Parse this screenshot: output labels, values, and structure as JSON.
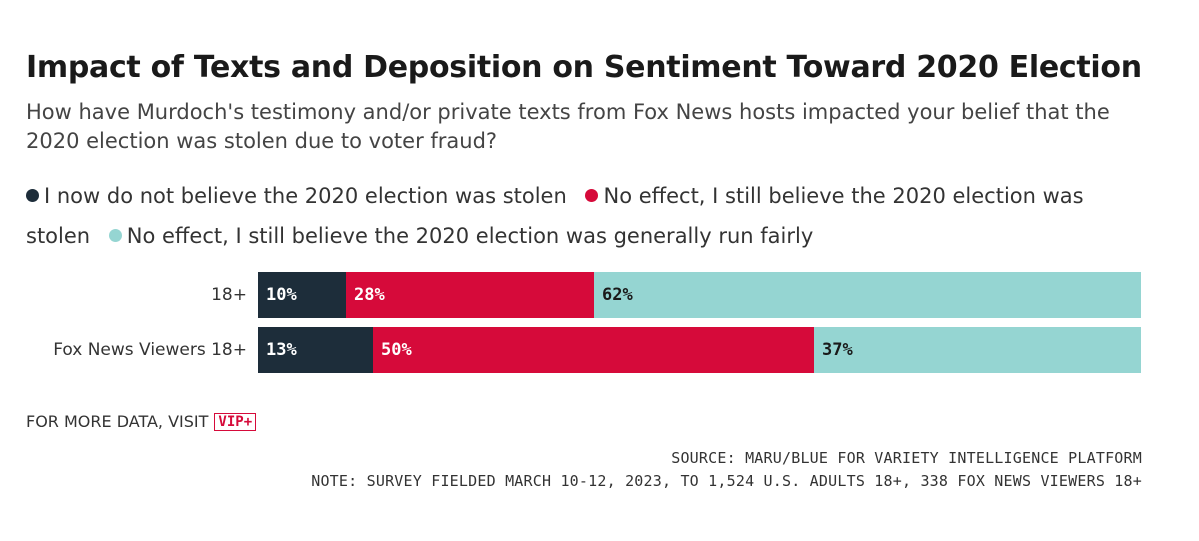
{
  "chart_data": {
    "type": "bar",
    "orientation": "horizontal",
    "stacked": true,
    "title": "Impact of Texts and Deposition on Sentiment Toward 2020 Election",
    "subtitle": "How have Murdoch's testimony and/or private texts from Fox News hosts impacted your belief that the 2020 election was stolen due to voter fraud?",
    "categories": [
      "18+",
      "Fox News Viewers 18+"
    ],
    "series": [
      {
        "name": "I now do not believe the 2020 election was stolen",
        "color": "#1d2d3a",
        "label_color": "#ffffff",
        "values": [
          10,
          13
        ],
        "labels": [
          "10%",
          "13%"
        ]
      },
      {
        "name": "No effect, I still believe the 2020 election was stolen",
        "color": "#d60a3a",
        "label_color": "#ffffff",
        "values": [
          28,
          50
        ],
        "labels": [
          "28%",
          "50%"
        ]
      },
      {
        "name": "No effect, I still believe the 2020 election was generally run fairly",
        "color": "#95d5d2",
        "label_color": "#1a1a1a",
        "values": [
          62,
          37
        ],
        "labels": [
          "62%",
          "37%"
        ]
      }
    ],
    "xlim": [
      0,
      100
    ],
    "legend_position": "top"
  },
  "footer": {
    "more_data": "FOR MORE DATA, VISIT",
    "vip_logo": "VIP+",
    "source": "SOURCE: MARU/BLUE FOR VARIETY INTELLIGENCE PLATFORM",
    "note": "NOTE: SURVEY FIELDED MARCH 10-12, 2023, TO 1,524 U.S. ADULTS 18+, 338 FOX NEWS VIEWERS 18+"
  }
}
